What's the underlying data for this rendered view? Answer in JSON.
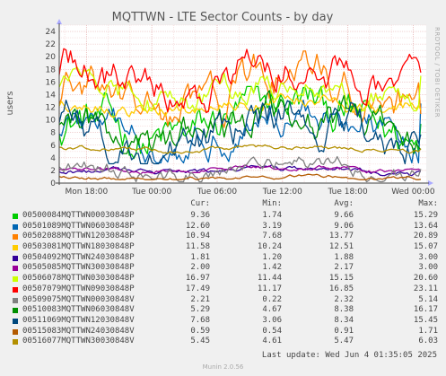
{
  "chart_data": {
    "type": "line",
    "title": "MQTTWN - LTE Sector Counts - by day",
    "ylabel": "users",
    "ylim": [
      0,
      25
    ],
    "yticks": [
      0,
      2,
      4,
      6,
      8,
      10,
      12,
      14,
      16,
      18,
      20,
      22,
      24
    ],
    "x_tick_labels": [
      "Mon 18:00",
      "Tue 00:00",
      "Tue 06:00",
      "Tue 12:00",
      "Tue 18:00",
      "Wed 00:00"
    ],
    "x_tick_hours": [
      18,
      24,
      30,
      36,
      42,
      48
    ],
    "x_range_hours": [
      15.5,
      49.2
    ],
    "grid": true,
    "legend_placement": "bottom",
    "columns": [
      "Cur:",
      "Min:",
      "Avg:",
      "Max:"
    ],
    "series": [
      {
        "name": "00500084MQTTWN00030848P",
        "color": "#00cc00",
        "cur": "9.36",
        "min": "1.74",
        "avg": "9.66",
        "max": "15.29",
        "avgv": 9.66,
        "minv": 1.74,
        "maxv": 15.29,
        "curv": 9.36
      },
      {
        "name": "00501089MQTTWN06030848P",
        "color": "#0066b3",
        "cur": "12.60",
        "min": "3.19",
        "avg": "9.06",
        "max": "13.64",
        "avgv": 9.06,
        "minv": 3.19,
        "maxv": 13.64,
        "curv": 12.6
      },
      {
        "name": "00502088MQTTWN12030848P",
        "color": "#ff8000",
        "cur": "10.94",
        "min": "7.68",
        "avg": "13.77",
        "max": "20.89",
        "avgv": 13.77,
        "minv": 7.68,
        "maxv": 20.89,
        "curv": 10.94
      },
      {
        "name": "00503081MQTTWN18030848P",
        "color": "#ffcc00",
        "cur": "11.58",
        "min": "10.24",
        "avg": "12.51",
        "max": "15.07",
        "avgv": 12.51,
        "minv": 10.24,
        "maxv": 15.07,
        "curv": 11.58
      },
      {
        "name": "00504092MQTTWN24030848P",
        "color": "#330099",
        "cur": "1.81",
        "min": "1.20",
        "avg": "1.88",
        "max": "3.00",
        "avgv": 1.88,
        "minv": 1.2,
        "maxv": 3.0,
        "curv": 1.81
      },
      {
        "name": "00505085MQTTWN30030848P",
        "color": "#990099",
        "cur": "2.00",
        "min": "1.42",
        "avg": "2.17",
        "max": "3.00",
        "avgv": 2.17,
        "minv": 1.42,
        "maxv": 3.0,
        "curv": 2.0
      },
      {
        "name": "00506078MQTTWN03030848P",
        "color": "#ccff00",
        "cur": "16.97",
        "min": "11.44",
        "avg": "15.15",
        "max": "20.60",
        "avgv": 15.15,
        "minv": 11.44,
        "maxv": 20.6,
        "curv": 16.97
      },
      {
        "name": "00507079MQTTWN09030848P",
        "color": "#ff0000",
        "cur": "17.49",
        "min": "11.17",
        "avg": "16.85",
        "max": "23.11",
        "avgv": 16.85,
        "minv": 11.17,
        "maxv": 23.11,
        "curv": 17.49
      },
      {
        "name": "00509075MQTTWN00030848V",
        "color": "#808080",
        "cur": "2.21",
        "min": "0.22",
        "avg": "2.32",
        "max": "5.14",
        "avgv": 2.32,
        "minv": 0.22,
        "maxv": 5.14,
        "curv": 2.21
      },
      {
        "name": "00510083MQTTWN06030848V",
        "color": "#008f00",
        "cur": "5.29",
        "min": "4.67",
        "avg": "8.38",
        "max": "16.17",
        "avgv": 8.38,
        "minv": 4.67,
        "maxv": 16.17,
        "curv": 5.29
      },
      {
        "name": "00511069MQTTWN12030848V",
        "color": "#00487d",
        "cur": "7.68",
        "min": "3.06",
        "avg": "8.34",
        "max": "15.45",
        "avgv": 8.34,
        "minv": 3.06,
        "maxv": 15.45,
        "curv": 7.68
      },
      {
        "name": "00515083MQTTWN24030848V",
        "color": "#b35a00",
        "cur": "0.59",
        "min": "0.54",
        "avg": "0.91",
        "max": "1.71",
        "avgv": 0.91,
        "minv": 0.54,
        "maxv": 1.71,
        "curv": 0.59
      },
      {
        "name": "00516077MQTTWN30030848V",
        "color": "#b38f00",
        "cur": "5.45",
        "min": "4.61",
        "avg": "5.47",
        "max": "6.03",
        "avgv": 5.47,
        "minv": 4.61,
        "maxv": 6.03,
        "curv": 5.45
      }
    ]
  },
  "side_text": "RRDTOOL / TOBI OETIKER",
  "last_update": "Last update: Wed Jun  4 01:35:05 2025",
  "footer": "Munin 2.0.56"
}
